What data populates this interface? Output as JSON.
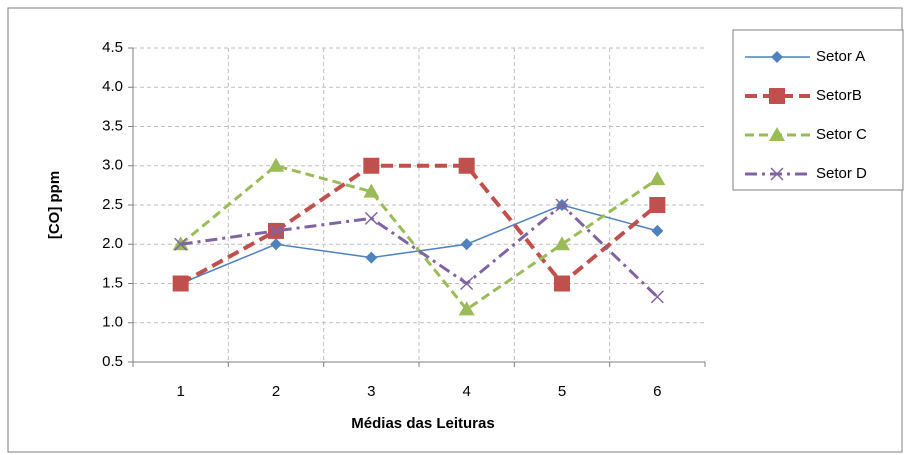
{
  "chart_data": {
    "type": "line",
    "x_label": "Médias das Leituras",
    "y_label": "[CO] ppm",
    "categories": [
      "1",
      "2",
      "3",
      "4",
      "5",
      "6"
    ],
    "series": [
      {
        "name": "Setor A",
        "color": "#4f81bd",
        "values": [
          1.5,
          2.0,
          1.83,
          2.0,
          2.5,
          2.17
        ]
      },
      {
        "name": "SetorB",
        "color": "#c0504d",
        "values": [
          1.5,
          2.17,
          3.0,
          3.0,
          1.5,
          2.5
        ]
      },
      {
        "name": "Setor C",
        "color": "#9bbb59",
        "values": [
          2.0,
          3.0,
          2.67,
          1.17,
          2.0,
          2.83
        ]
      },
      {
        "name": "Setor D",
        "color": "#8064a2",
        "values": [
          2.0,
          2.17,
          2.33,
          1.5,
          2.5,
          1.33
        ]
      }
    ],
    "ylim": [
      0.5,
      4.5
    ],
    "yticks": [
      0.5,
      {
        "value": 1,
        "label": "1.0"
      },
      1.5,
      {
        "value": 2,
        "label": "2.0"
      },
      2.5,
      {
        "value": 3,
        "label": "3.0"
      },
      3.5,
      {
        "value": 4,
        "label": "4.0"
      },
      4.5
    ],
    "grid": true,
    "legend": "right"
  }
}
